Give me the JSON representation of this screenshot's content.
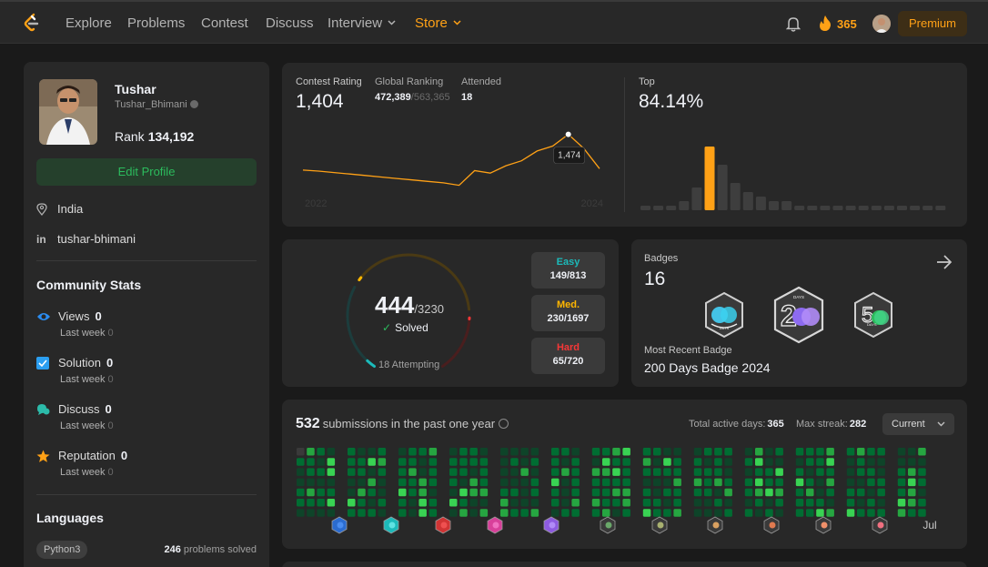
{
  "nav": {
    "items": [
      "Explore",
      "Problems",
      "Contest",
      "Discuss",
      "Interview",
      "Store"
    ],
    "streak": "365",
    "premium": "Premium"
  },
  "profile": {
    "name": "Tushar",
    "username": "Tushar_Bhimani",
    "rank_label": "Rank",
    "rank": "134,192",
    "edit": "Edit Profile",
    "location": "India",
    "linkedin": "tushar-bhimani"
  },
  "community": {
    "title": "Community Stats",
    "last_week": "Last week",
    "items": [
      {
        "label": "Views",
        "value": "0",
        "delta": "0"
      },
      {
        "label": "Solution",
        "value": "0",
        "delta": "0"
      },
      {
        "label": "Discuss",
        "value": "0",
        "delta": "0"
      },
      {
        "label": "Reputation",
        "value": "0",
        "delta": "0"
      }
    ]
  },
  "languages": {
    "title": "Languages",
    "items": [
      {
        "name": "Python3",
        "count": "246",
        "suffix": "problems solved"
      }
    ]
  },
  "contest": {
    "rating_label": "Contest Rating",
    "rating": "1,404",
    "global_label": "Global Ranking",
    "global": "472,389",
    "global_total": "/563,365",
    "attended_label": "Attended",
    "attended": "18",
    "tooltip": "1,474",
    "year_start": "2022",
    "year_end": "2024",
    "top_label": "Top",
    "top": "84.14%",
    "history": [
      1401,
      1399,
      1396,
      1393,
      1390,
      1387,
      1384,
      1381,
      1378,
      1375,
      1370,
      1400,
      1395,
      1410,
      1420,
      1440,
      1450,
      1474,
      1445,
      1404
    ],
    "histogram": [
      1,
      1,
      1,
      2,
      5,
      14,
      10,
      6,
      4,
      3,
      2,
      2,
      1,
      1,
      1,
      1,
      1,
      1,
      1,
      1,
      1,
      1,
      1,
      1
    ],
    "highlight_bar": 5,
    "accent": "#ffa116"
  },
  "solved": {
    "count": "444",
    "total": "/3230",
    "label": "Solved",
    "attempting": "18 Attempting",
    "easy_label": "Easy",
    "easy": "149/813",
    "easy_color": "#1cbaba",
    "med_label": "Med.",
    "med": "230/1697",
    "med_color": "#ffb700",
    "hard_label": "Hard",
    "hard": "65/720",
    "hard_color": "#f63737"
  },
  "badges": {
    "title": "Badges",
    "count": "16",
    "recent_label": "Most Recent Badge",
    "recent": "200 Days Badge 2024",
    "badge_icons": [
      "days-badge-icon",
      "200-days-badge-icon",
      "50-days-badge-icon"
    ]
  },
  "submissions": {
    "count": "532",
    "text": "submissions in the past one year",
    "active_label": "Total active days:",
    "active": "365",
    "streak_label": "Max streak:",
    "streak": "282",
    "select": "Current",
    "month_label": "Jul"
  }
}
